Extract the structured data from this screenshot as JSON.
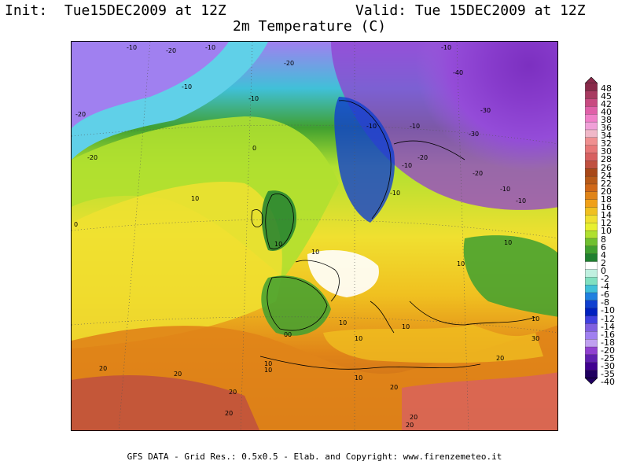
{
  "header": {
    "init": "Init:  Tue15DEC2009 at 12Z",
    "valid": "Valid: Tue 15DEC2009 at 12Z",
    "title": "2m Temperature (C)"
  },
  "footer": "GFS DATA - Grid Res.: 0.5x0.5 - Elab. and Copyright: www.firenzemeteo.it",
  "colorbar": {
    "unit": "C",
    "levels": [
      "48",
      "45",
      "42",
      "40",
      "38",
      "36",
      "34",
      "32",
      "30",
      "28",
      "26",
      "24",
      "22",
      "20",
      "18",
      "16",
      "14",
      "12",
      "10",
      "8",
      "6",
      "4",
      "2",
      "0",
      "-2",
      "-4",
      "-6",
      "-8",
      "-10",
      "-12",
      "-14",
      "-16",
      "-18",
      "-20",
      "-25",
      "-30",
      "-35",
      "-40"
    ],
    "colors": [
      "#8a2a4a",
      "#a83a60",
      "#c84a80",
      "#e060a8",
      "#f080c8",
      "#f0a0d8",
      "#f0b8c8",
      "#f09090",
      "#e87878",
      "#d86060",
      "#c05040",
      "#a84818",
      "#b85a18",
      "#d06818",
      "#e08418",
      "#f0a018",
      "#f0c020",
      "#f0e030",
      "#e8f030",
      "#b0e030",
      "#70c030",
      "#40a030",
      "#208030",
      "#ffffff",
      "#c0f0e0",
      "#80e0c0",
      "#40c0d8",
      "#2080e0",
      "#1040d0",
      "#0020c0",
      "#4040e0",
      "#8060e0",
      "#a080f0",
      "#c0a0f0",
      "#9040d0",
      "#6020b0",
      "#400090",
      "#200060"
    ]
  },
  "map": {
    "contour_labels": [
      "-10",
      "-20",
      "-10",
      "-20",
      "-30",
      "-40",
      "-10",
      "-20",
      "-10",
      "-20",
      "-10",
      "-30",
      "-20",
      "-20",
      "-10",
      "-10",
      "-10",
      "-10",
      "-10",
      "-10",
      "0",
      "10",
      "10",
      "0",
      "10",
      "10",
      "10",
      "10",
      "10",
      "0",
      "10",
      "20",
      "20",
      "20",
      "20",
      "30",
      "10",
      "20",
      "10",
      "20",
      "0",
      "10",
      "20",
      "10",
      "20"
    ]
  }
}
